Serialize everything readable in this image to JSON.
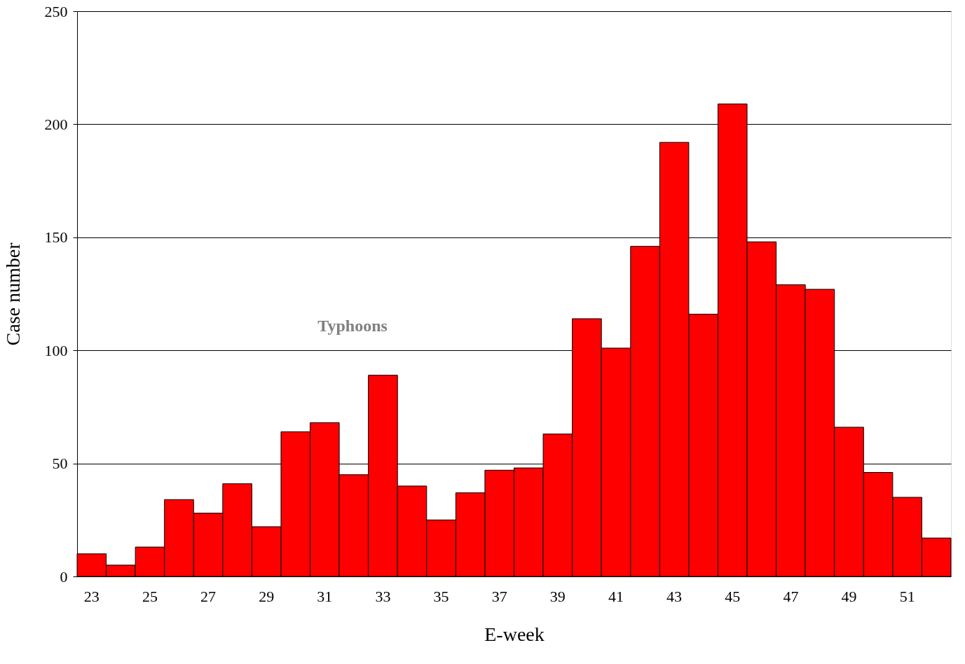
{
  "chart_data": {
    "type": "bar",
    "xlabel": "E-week",
    "ylabel": "Case number",
    "categories": [
      "23",
      null,
      "25",
      null,
      "27",
      null,
      "29",
      null,
      "31",
      null,
      "33",
      null,
      "35",
      null,
      "37",
      null,
      "39",
      null,
      "41",
      null,
      "43",
      null,
      "45",
      null,
      "47",
      null,
      "49",
      null,
      "51",
      null
    ],
    "values": [
      10,
      5,
      13,
      34,
      28,
      41,
      22,
      64,
      68,
      45,
      89,
      40,
      25,
      37,
      47,
      48,
      63,
      114,
      101,
      146,
      192,
      116,
      209,
      148,
      129,
      127,
      66,
      46,
      35,
      17
    ],
    "color": "#ff0000",
    "ylim": [
      0,
      250
    ],
    "yticks": [
      0,
      50,
      100,
      150,
      200,
      250
    ],
    "grid": "y",
    "annotations": [
      "Typhoons"
    ]
  }
}
